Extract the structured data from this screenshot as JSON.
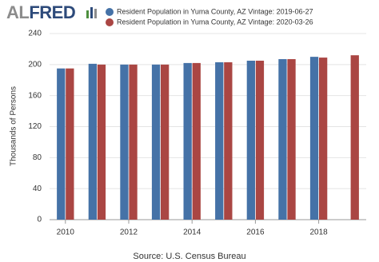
{
  "logo": [
    "AL",
    "FRED"
  ],
  "chart_data": {
    "type": "bar",
    "y_label": "Thousands of Persons",
    "source": "Source: U.S. Census Bureau",
    "x": [
      2010,
      2011,
      2012,
      2013,
      2014,
      2015,
      2016,
      2017,
      2018,
      2019
    ],
    "xlim": [
      2009.5,
      2019.5
    ],
    "xticks": [
      2010,
      2012,
      2014,
      2016,
      2018
    ],
    "ylim": [
      0,
      240
    ],
    "yticks": [
      0,
      40,
      80,
      120,
      160,
      200,
      240
    ],
    "grid": true,
    "legend": "top",
    "series": [
      {
        "name": "Resident Population in Yuma County, AZ Vintage: 2019-06-27",
        "color": "#4572a7",
        "values": [
          195,
          201,
          200,
          200,
          202,
          203,
          205,
          207,
          210,
          null
        ]
      },
      {
        "name": "Resident Population in Yuma County, AZ Vintage: 2020-03-26",
        "color": "#aa4643",
        "values": [
          195,
          200,
          200,
          200,
          202,
          203,
          205,
          207,
          209,
          212
        ]
      }
    ]
  }
}
